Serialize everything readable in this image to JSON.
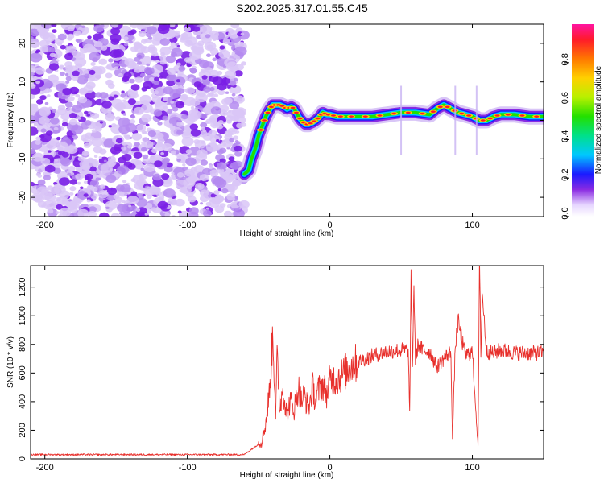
{
  "title": "S202.2025.317.01.55.C45",
  "colors": {
    "snr_line": "#e8302c",
    "noise": "#8a2be2",
    "axis": "#000000"
  },
  "chart_data": [
    {
      "name": "spectrogram",
      "type": "heatmap",
      "xlabel": "Height of straight line (km)",
      "ylabel": "Frequency (Hz)",
      "xlim": [
        -210,
        150
      ],
      "ylim": [
        -25,
        25
      ],
      "xticks": [
        -200,
        -100,
        0,
        100
      ],
      "yticks": [
        -20,
        -10,
        0,
        10,
        20
      ],
      "noise_region_x": [
        -210,
        -60
      ],
      "ridge": {
        "x": [
          -60,
          -57,
          -55,
          -52,
          -50,
          -47,
          -45,
          -42,
          -40,
          -37,
          -35,
          -32,
          -30,
          -27,
          -25,
          -22,
          -20,
          -17,
          -15,
          -12,
          -10,
          -7,
          -5,
          -2,
          0,
          5,
          10,
          20,
          30,
          40,
          50,
          60,
          70,
          75,
          80,
          85,
          90,
          95,
          100,
          105,
          110,
          115,
          120,
          130,
          140,
          150
        ],
        "y": [
          -14,
          -13,
          -10,
          -7,
          -4,
          -1,
          1,
          3,
          4,
          4,
          4,
          3.5,
          3,
          3.5,
          3,
          1,
          0,
          -1,
          -1,
          -0.5,
          0,
          1,
          2,
          1.5,
          1.5,
          1,
          1,
          1,
          1,
          1.5,
          2,
          2,
          1.5,
          3,
          4,
          3,
          2,
          1.5,
          1,
          0,
          0,
          1,
          1.5,
          1.5,
          1,
          1
        ]
      },
      "colorbar": {
        "label": "Normalized spectral amplitude",
        "range": [
          0,
          1
        ],
        "ticks": [
          "0.0",
          "0.2",
          "0.4",
          "0.6",
          "0.8"
        ]
      }
    },
    {
      "name": "snr",
      "type": "line",
      "xlabel": "Height of straight line (km)",
      "ylabel": "SNR (10 * v/v)",
      "xlim": [
        -210,
        150
      ],
      "ylim": [
        0,
        1350
      ],
      "xticks": [
        -200,
        -100,
        0,
        100
      ],
      "yticks": [
        0,
        200,
        400,
        600,
        800,
        1000,
        1200
      ],
      "series": [
        {
          "name": "SNR",
          "x": [
            -210,
            -150,
            -100,
            -60,
            -48,
            -45,
            -42,
            -40,
            -38,
            -37,
            -35,
            -33,
            -30,
            -28,
            -25,
            -22,
            -20,
            -18,
            -15,
            -12,
            -10,
            -8,
            -5,
            -2,
            0,
            5,
            10,
            15,
            20,
            25,
            30,
            40,
            50,
            55,
            56,
            57,
            58,
            59,
            60,
            62,
            65,
            70,
            75,
            80,
            85,
            86,
            88,
            90,
            95,
            100,
            104,
            105,
            106,
            107,
            110,
            115,
            120,
            130,
            140,
            150
          ],
          "y": [
            30,
            30,
            30,
            30,
            120,
            250,
            500,
            900,
            300,
            700,
            350,
            500,
            300,
            400,
            350,
            500,
            400,
            450,
            350,
            500,
            400,
            480,
            520,
            450,
            550,
            560,
            600,
            650,
            680,
            700,
            720,
            750,
            760,
            760,
            320,
            1240,
            650,
            1220,
            700,
            800,
            760,
            750,
            640,
            700,
            750,
            130,
            780,
            960,
            720,
            750,
            80,
            1350,
            750,
            1150,
            750,
            740,
            760,
            740,
            740,
            740
          ]
        }
      ]
    }
  ]
}
